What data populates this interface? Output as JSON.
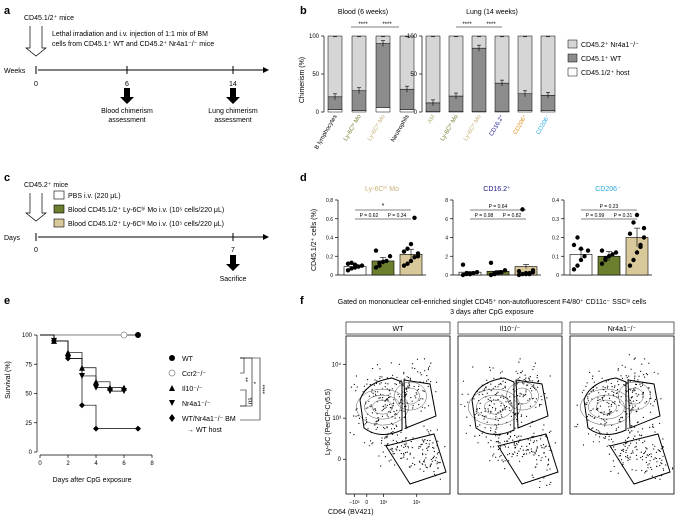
{
  "colors": {
    "olive": "#6b7f2e",
    "tan": "#d9c89a",
    "tan_text": "#c9b07a",
    "darkgray": "#8c8c8c",
    "lightgray": "#d6d6d6",
    "navy": "#1a1a8c",
    "orange": "#e08a1e",
    "cyan": "#29a9e0",
    "am_green": "#a8b87a"
  },
  "panel_a": {
    "letter": "a",
    "mice": "CD45.1/2⁺ mice",
    "line1": "Lethal irradiation and i.v. injection of 1:1 mix of BM",
    "line2": "cells from CD45.1⁺ WT and CD45.2⁺ Nr4a1⁻/⁻ mice",
    "axis_label": "Weeks",
    "t0": "0",
    "t6": "6",
    "t14": "14",
    "blood1": "Blood chimerism",
    "blood2": "assessment",
    "lung1": "Lung chimerism",
    "lung2": "assessment"
  },
  "panel_b": {
    "letter": "b",
    "blood_title": "Blood (6 weeks)",
    "lung_title": "Lung (14 weeks)",
    "ylabel": "Chimerism (%)",
    "sig": "****",
    "legend": [
      "CD45.2⁺ Nr4a1⁻/⁻",
      "CD45.1⁺ WT",
      "CD45.1/2⁺ host"
    ]
  },
  "panel_c": {
    "letter": "c",
    "mice": "CD45.2⁺ mice",
    "box1": "PBS i.v. (220 μL)",
    "box2": "Blood CD45.1/2⁺ Ly-6Cʰⁱ Mo i.v. (10⁵ cells/220 μL)",
    "box3": "Blood CD45.1/2⁺ Ly-6Cˡᵒ Mo i.v. (10⁵ cells/220 μL)",
    "axis_label": "Days",
    "t0": "0",
    "t7": "7",
    "sacrifice": "Sacrifice"
  },
  "panel_d": {
    "letter": "d",
    "ylabel": "CD45.1/2⁺ cells (%)",
    "panels": [
      {
        "title": "Ly-6Cʰⁱ Mo",
        "p1": "P = 0.62",
        "p2": "P = 0.34",
        "p3": "*"
      },
      {
        "title": "CD16.2⁺",
        "p1": "P = 0.98",
        "p2": "P = 0.82",
        "p3": "P = 0.64"
      },
      {
        "title": "CD206⁻",
        "p1": "P = 0.99",
        "p2": "P = 0.31",
        "p3": "P = 0.23"
      }
    ]
  },
  "panel_e": {
    "letter": "e",
    "ylabel": "Survival (%)",
    "xlabel": "Days after CpG exposure",
    "legend": [
      "WT",
      "Ccr2⁻/⁻",
      "Il10⁻/⁻",
      "Nr4a1⁻/⁻",
      "WT/Nr4a1⁻/⁻ BM",
      "→ WT host"
    ],
    "sig": [
      "**",
      "*",
      "****",
      "ns"
    ]
  },
  "panel_f": {
    "letter": "f",
    "title1": "Gated on mononuclear cell-enriched singlet CD45⁺ non-autofluorescent F4/80⁺ CD11c⁻ SSCˡᵒ cells",
    "title2": "3 days after CpG exposure",
    "cols": [
      "WT",
      "Il10⁻/⁻",
      "Nr4a1⁻/⁻"
    ],
    "ylabel": "Ly-6C (PerCP-Cy5.5)",
    "xlabel": "CD64 (BV421)",
    "yticks": [
      "10⁴",
      "10³",
      "0"
    ],
    "xticks": [
      "−10³",
      "0",
      "10³",
      "10⁴"
    ]
  },
  "chart_data": [
    {
      "type": "bar",
      "title": "Blood (6 weeks)",
      "ylabel": "Chimerism (%)",
      "ylim": [
        0,
        100
      ],
      "categories": [
        "B lymphocytes",
        "Ly-6Cʰⁱ Mo",
        "Ly-6Cˡᵒ Mo",
        "Neutrophils"
      ],
      "series": [
        {
          "name": "CD45.1/2⁺ host",
          "values": [
            3,
            2,
            6,
            3
          ]
        },
        {
          "name": "CD45.1⁺ WT",
          "values": [
            17,
            26,
            84,
            27
          ]
        },
        {
          "name": "CD45.2⁺ Nr4a1⁻/⁻",
          "values": [
            80,
            72,
            10,
            70
          ]
        }
      ]
    },
    {
      "type": "bar",
      "title": "Lung (14 weeks)",
      "ylabel": "Chimerism (%)",
      "ylim": [
        0,
        100
      ],
      "categories": [
        "AM",
        "Ly-6Cʰⁱ Mo",
        "Ly-6Cˡᵒ Mo",
        "CD16.2⁺",
        "CD206⁺",
        "CD206⁻"
      ],
      "series": [
        {
          "name": "CD45.1/2⁺ host",
          "values": [
            1,
            1,
            1,
            1,
            2,
            2
          ]
        },
        {
          "name": "CD45.1⁺ WT",
          "values": [
            11,
            20,
            83,
            37,
            22,
            20
          ]
        },
        {
          "name": "CD45.2⁺ Nr4a1⁻/⁻",
          "values": [
            88,
            79,
            16,
            62,
            76,
            78
          ]
        }
      ]
    },
    {
      "type": "bar",
      "title": "Ly-6Cʰⁱ Mo",
      "ylabel": "CD45.1/2⁺ cells (%)",
      "ylim": [
        0,
        0.8
      ],
      "categories": [
        "PBS",
        "Ly-6Cʰⁱ Mo",
        "Ly-6Cˡᵒ Mo"
      ],
      "values": [
        0.09,
        0.15,
        0.22
      ],
      "points": [
        [
          0.05,
          0.07,
          0.08,
          0.09,
          0.1,
          0.12,
          0.13,
          0.11
        ],
        [
          0.08,
          0.1,
          0.14,
          0.15,
          0.2,
          0.26,
          0.13
        ],
        [
          0.1,
          0.12,
          0.15,
          0.19,
          0.23,
          0.25,
          0.28,
          0.33,
          0.61,
          0.2
        ]
      ]
    },
    {
      "type": "bar",
      "title": "CD16.2⁺",
      "ylabel": "CD45.1/2⁺ cells (%)",
      "ylim": [
        0,
        8
      ],
      "categories": [
        "PBS",
        "Ly-6Cʰⁱ Mo",
        "Ly-6Cˡᵒ Mo"
      ],
      "values": [
        0.3,
        0.4,
        0.9
      ],
      "points": [
        [
          0,
          0.1,
          0.1,
          0.2,
          0.3,
          1.1,
          0.2,
          0.1
        ],
        [
          0,
          0.1,
          0.2,
          0.3,
          0.5,
          1.3,
          0.2
        ],
        [
          0,
          0.1,
          0.1,
          0.2,
          0.3,
          0.4,
          7.0,
          0.2,
          0.1,
          0.5
        ]
      ]
    },
    {
      "type": "bar",
      "title": "CD206⁻",
      "ylabel": "CD45.1/2⁺ cells (%)",
      "ylim": [
        0,
        0.4
      ],
      "categories": [
        "PBS",
        "Ly-6Cʰⁱ Mo",
        "Ly-6Cˡᵒ Mo"
      ],
      "values": [
        0.11,
        0.1,
        0.2
      ],
      "points": [
        [
          0.03,
          0.05,
          0.08,
          0.1,
          0.13,
          0.16,
          0.2,
          0.14
        ],
        [
          0.06,
          0.08,
          0.1,
          0.11,
          0.12,
          0.13,
          0.09
        ],
        [
          0.05,
          0.08,
          0.12,
          0.16,
          0.2,
          0.22,
          0.28,
          0.32,
          0.15,
          0.25
        ]
      ]
    },
    {
      "type": "line",
      "title": "Survival",
      "xlabel": "Days after CpG exposure",
      "ylabel": "Survival (%)",
      "xlim": [
        0,
        8
      ],
      "ylim": [
        0,
        100
      ],
      "series": [
        {
          "name": "WT",
          "x": [
            0,
            7
          ],
          "y": [
            100,
            100
          ]
        },
        {
          "name": "Ccr2⁻/⁻",
          "x": [
            0,
            6
          ],
          "y": [
            100,
            100
          ]
        },
        {
          "name": "Il10⁻/⁻",
          "x": [
            0,
            1,
            2,
            3,
            4,
            5,
            6
          ],
          "y": [
            100,
            95,
            85,
            72,
            60,
            55,
            55
          ]
        },
        {
          "name": "Nr4a1⁻/⁻",
          "x": [
            0,
            1,
            2,
            3,
            4,
            5,
            6
          ],
          "y": [
            100,
            95,
            80,
            65,
            55,
            52,
            52
          ]
        },
        {
          "name": "WT/Nr4a1⁻/⁻ BM → WT host",
          "x": [
            0,
            1,
            2,
            3,
            4,
            7
          ],
          "y": [
            100,
            95,
            80,
            40,
            20,
            20
          ]
        }
      ]
    }
  ]
}
